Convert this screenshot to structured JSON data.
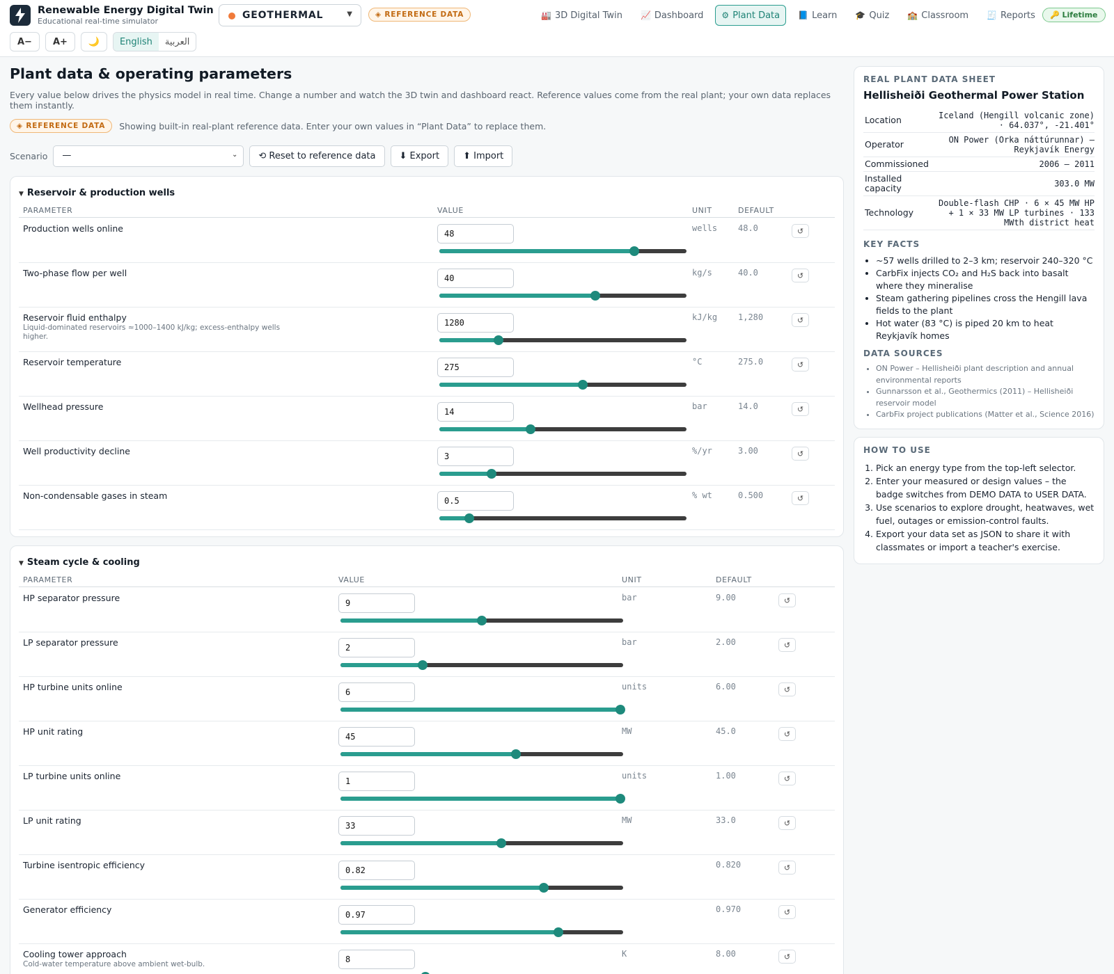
{
  "app": {
    "title": "Renewable Energy Digital Twin",
    "subtitle": "Educational real-time simulator",
    "energy_type": "GEOTHERMAL",
    "reference_badge": "◈ REFERENCE DATA",
    "lifetime_badge": "🔑 Lifetime",
    "font_decrease": "A−",
    "font_increase": "A+",
    "theme_icon": "🌙",
    "languages": [
      "English",
      "العربية"
    ],
    "colors": {
      "accent": "#2a9d8f",
      "energy_dot": "#f07a3a",
      "reference": "#c26a12",
      "lifetime": "#2b7d3e"
    }
  },
  "nav": [
    {
      "icon": "🏭",
      "icon_name": "factory-icon",
      "label": "3D Digital Twin",
      "active": false
    },
    {
      "icon": "📈",
      "icon_name": "chart-icon",
      "label": "Dashboard",
      "active": false
    },
    {
      "icon": "⚙",
      "icon_name": "gear-icon",
      "label": "Plant Data",
      "active": true
    },
    {
      "icon": "📘",
      "icon_name": "book-icon",
      "label": "Learn",
      "active": false
    },
    {
      "icon": "🎓",
      "icon_name": "graduation-cap-icon",
      "label": "Quiz",
      "active": false
    },
    {
      "icon": "🏫",
      "icon_name": "school-icon",
      "label": "Classroom",
      "active": false
    },
    {
      "icon": "🧾",
      "icon_name": "receipt-icon",
      "label": "Reports",
      "active": false
    }
  ],
  "page": {
    "title": "Plant data & operating parameters",
    "intro": "Every value below drives the physics model in real time. Change a number and watch the 3D twin and dashboard react. Reference values come from the real plant; your own data replaces them instantly.",
    "ref_badge": "◈ REFERENCE DATA",
    "ref_note": "Showing built-in real-plant reference data. Enter your own values in “Plant Data” to replace them.",
    "scenario_label": "Scenario",
    "scenario_value": "—",
    "reset_label": "⟲ Reset to reference data",
    "export_label": "⬇ Export",
    "import_label": "⬆ Import"
  },
  "columns": {
    "parameter": "PARAMETER",
    "value": "VALUE",
    "unit": "UNIT",
    "default": "DEFAULT"
  },
  "sections": [
    {
      "title": "Reservoir & production wells",
      "params": [
        {
          "name": "Production wells online",
          "desc": "",
          "value": "48",
          "unit": "wells",
          "default": "48.0",
          "level": 0.79
        },
        {
          "name": "Two-phase flow per well",
          "desc": "",
          "value": "40",
          "unit": "kg/s",
          "default": "40.0",
          "level": 0.63
        },
        {
          "name": "Reservoir fluid enthalpy",
          "desc": "Liquid-dominated reservoirs ≈1000–1400 kJ/kg; excess-enthalpy wells higher.",
          "value": "1280",
          "unit": "kJ/kg",
          "default": "1,280",
          "level": 0.24
        },
        {
          "name": "Reservoir temperature",
          "desc": "",
          "value": "275",
          "unit": "°C",
          "default": "275.0",
          "level": 0.58
        },
        {
          "name": "Wellhead pressure",
          "desc": "",
          "value": "14",
          "unit": "bar",
          "default": "14.0",
          "level": 0.37
        },
        {
          "name": "Well productivity decline",
          "desc": "",
          "value": "3",
          "unit": "%/yr",
          "default": "3.00",
          "level": 0.21
        },
        {
          "name": "Non-condensable gases in steam",
          "desc": "",
          "value": "0.5",
          "unit": "% wt",
          "default": "0.500",
          "level": 0.12
        }
      ]
    },
    {
      "title": "Steam cycle & cooling",
      "params": [
        {
          "name": "HP separator pressure",
          "desc": "",
          "value": "9",
          "unit": "bar",
          "default": "9.00",
          "level": 0.5
        },
        {
          "name": "LP separator pressure",
          "desc": "",
          "value": "2",
          "unit": "bar",
          "default": "2.00",
          "level": 0.29
        },
        {
          "name": "HP turbine units online",
          "desc": "",
          "value": "6",
          "unit": "units",
          "default": "6.00",
          "level": 0.99
        },
        {
          "name": "HP unit rating",
          "desc": "",
          "value": "45",
          "unit": "MW",
          "default": "45.0",
          "level": 0.62
        },
        {
          "name": "LP turbine units online",
          "desc": "",
          "value": "1",
          "unit": "units",
          "default": "1.00",
          "level": 0.99
        },
        {
          "name": "LP unit rating",
          "desc": "",
          "value": "33",
          "unit": "MW",
          "default": "33.0",
          "level": 0.57
        },
        {
          "name": "Turbine isentropic efficiency",
          "desc": "",
          "value": "0.82",
          "unit": "",
          "default": "0.820",
          "level": 0.72
        },
        {
          "name": "Generator efficiency",
          "desc": "",
          "value": "0.97",
          "unit": "",
          "default": "0.970",
          "level": 0.77
        },
        {
          "name": "Cooling tower approach",
          "desc": "Cold-water temperature above ambient wet-bulb.",
          "value": "8",
          "unit": "K",
          "default": "8.00",
          "level": 0.3
        }
      ]
    }
  ],
  "datasheet": {
    "heading": "REAL PLANT DATA SHEET",
    "plant_name": "Hellisheiði Geothermal Power Station",
    "rows": [
      {
        "key": "Location",
        "value": "Iceland (Hengill volcanic zone) · 64.037°, -21.401°"
      },
      {
        "key": "Operator",
        "value": "ON Power (Orka náttúrunnar) — Reykjavík Energy"
      },
      {
        "key": "Commissioned",
        "value": "2006 – 2011"
      },
      {
        "key": "Installed capacity",
        "value": "303.0 MW"
      },
      {
        "key": "Technology",
        "value": "Double-flash CHP · 6 × 45 MW HP + 1 × 33 MW LP turbines · 133 MWth district heat"
      }
    ],
    "facts_heading": "KEY FACTS",
    "facts": [
      "~57 wells drilled to 2–3 km; reservoir 240–320 °C",
      "CarbFix injects CO₂ and H₂S back into basalt where they mineralise",
      "Steam gathering pipelines cross the Hengill lava fields to the plant",
      "Hot water (83 °C) is piped 20 km to heat Reykjavík homes"
    ],
    "sources_heading": "DATA SOURCES",
    "sources": [
      "ON Power – Hellisheiði plant description and annual environmental reports",
      "Gunnarsson et al., Geothermics (2011) – Hellisheiði reservoir model",
      "CarbFix project publications (Matter et al., Science 2016)"
    ]
  },
  "howto": {
    "heading": "HOW TO USE",
    "steps": [
      "Pick an energy type from the top-left selector.",
      "Enter your measured or design values – the badge switches from DEMO DATA to USER DATA.",
      "Use scenarios to explore drought, heatwaves, wet fuel, outages or emission-control faults.",
      "Export your data set as JSON to share it with classmates or import a teacher's exercise."
    ]
  }
}
